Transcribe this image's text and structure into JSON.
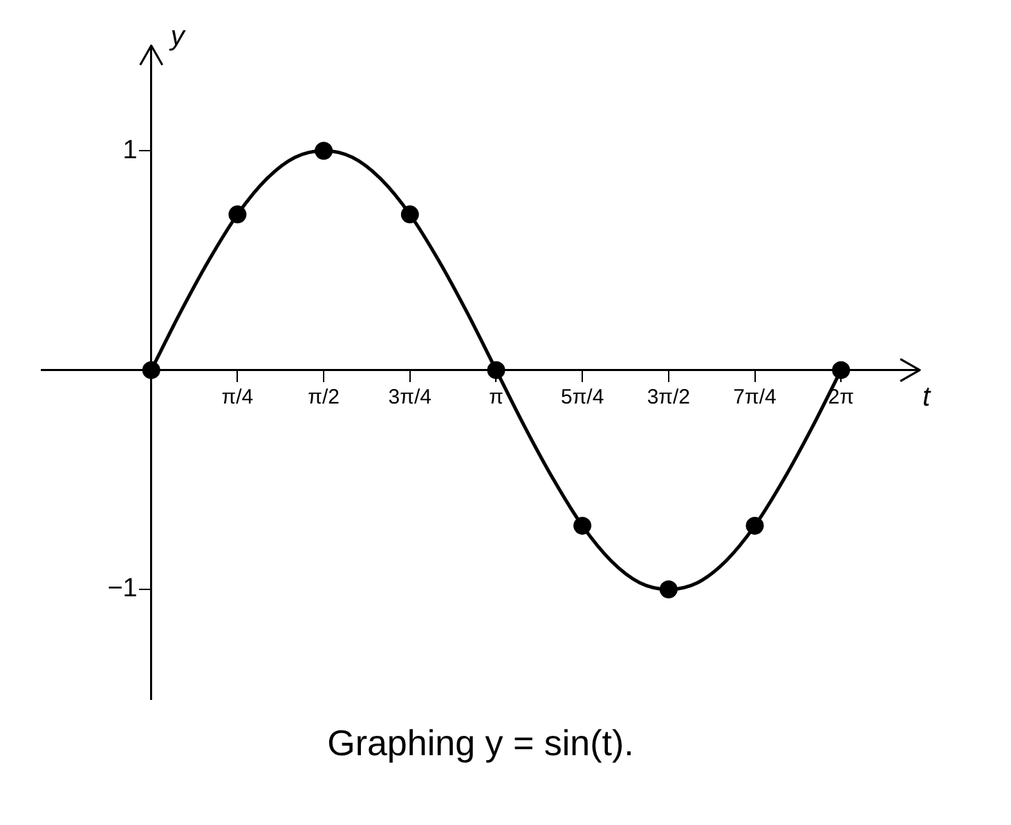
{
  "chart_data": {
    "type": "line",
    "title": "Graphing y = sin(t).",
    "xlabel": "t",
    "ylabel": "y",
    "xlim": [
      -1,
      7
    ],
    "ylim": [
      -1.5,
      1.48
    ],
    "xticks": [
      {
        "value": 0.7854,
        "label": "π/4"
      },
      {
        "value": 1.5708,
        "label": "π/2"
      },
      {
        "value": 2.3562,
        "label": "3π/4"
      },
      {
        "value": 3.1416,
        "label": "π"
      },
      {
        "value": 3.927,
        "label": "5π/4"
      },
      {
        "value": 4.7124,
        "label": "3π/2"
      },
      {
        "value": 5.4978,
        "label": "7π/4"
      },
      {
        "value": 6.2832,
        "label": "2π"
      }
    ],
    "yticks": [
      {
        "value": -1,
        "label": "−1"
      },
      1
    ],
    "grid": false,
    "legend": false,
    "series": [
      {
        "type": "line",
        "color": "#000000",
        "marker": "none",
        "x": [
          0,
          0.2618,
          0.5236,
          0.7854,
          1.0472,
          1.309,
          1.5708,
          1.8326,
          2.0944,
          2.3562,
          2.618,
          2.8798,
          3.1416,
          3.4034,
          3.6652,
          3.927,
          4.1888,
          4.4506,
          4.7124,
          4.9742,
          5.236,
          5.4978,
          5.7596,
          6.0214,
          6.2832
        ],
        "values": [
          0,
          0.26,
          0.5,
          0.71,
          0.87,
          0.97,
          1,
          0.97,
          0.87,
          0.71,
          0.5,
          0.26,
          0,
          -0.26,
          -0.5,
          -0.71,
          -0.87,
          -0.97,
          -1,
          -0.97,
          -0.87,
          -0.71,
          -0.5,
          -0.26,
          0
        ]
      },
      {
        "type": "scatter",
        "color": "#000000",
        "marker": "circle",
        "x": [
          0,
          0.7854,
          1.5708,
          2.3562,
          3.1416,
          3.927,
          4.7124,
          5.4978,
          6.2832
        ],
        "values": [
          0,
          0.71,
          1,
          0.71,
          0,
          -0.71,
          -1,
          -0.71,
          0
        ]
      }
    ]
  }
}
